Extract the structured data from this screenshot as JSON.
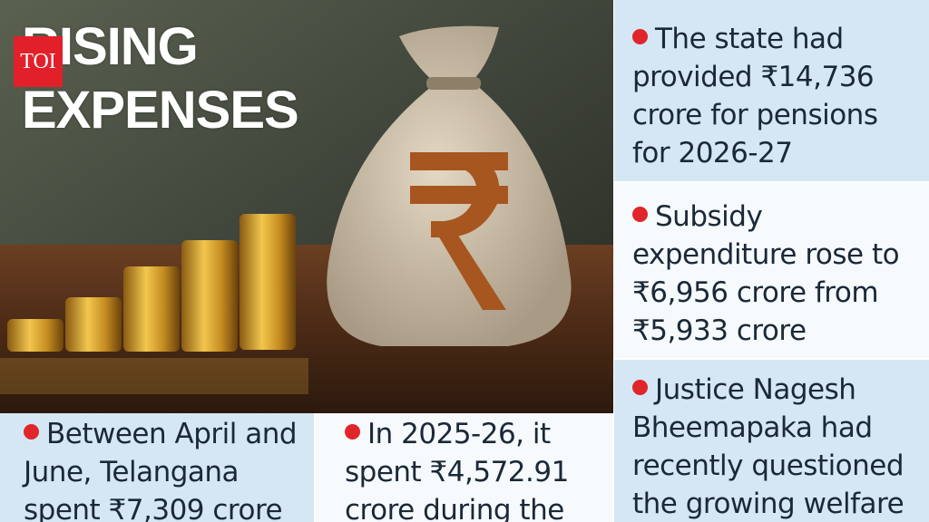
{
  "logo": "TOI",
  "header": {
    "title_lines": [
      "RISING",
      "EXPENSES"
    ]
  },
  "panels": [
    {
      "text": "The state had provided ₹14,736 crore for pensions for 2026-27"
    },
    {
      "text": "Subsidy expenditure rose to ₹6,956 crore from ₹5,933 crore"
    },
    {
      "text": "Justice Nagesh Bheemapaka had recently questioned the growing welfare"
    },
    {
      "text": "Between April and June, Telangana spent ₹7,309 crore"
    },
    {
      "text": "In 2025-26, it spent ₹4,572.91 crore during the"
    }
  ]
}
